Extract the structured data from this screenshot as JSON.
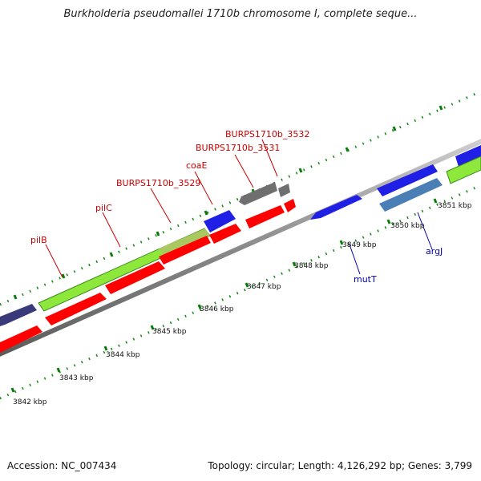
{
  "title": "Burkholderia pseudomallei 1710b chromosome I, complete seque...",
  "accession": "Accession: NC_007434",
  "summary": "Topology: circular; Length: 4,126,292 bp; Genes: 3,799",
  "scale_labels": [
    {
      "id": "3842",
      "text": "3842 kbp"
    },
    {
      "id": "3843",
      "text": "3843 kbp"
    },
    {
      "id": "3844",
      "text": "3844 kbp"
    },
    {
      "id": "3845",
      "text": "3845 kbp"
    },
    {
      "id": "3846",
      "text": "3846 kbp"
    },
    {
      "id": "3847",
      "text": "3847 kbp"
    },
    {
      "id": "3848",
      "text": "3848 kbp"
    },
    {
      "id": "3849",
      "text": "3849 kbp"
    },
    {
      "id": "3850",
      "text": "3850 kbp"
    },
    {
      "id": "3851",
      "text": "3851 kbp"
    }
  ],
  "genes": [
    {
      "id": "pilB",
      "label": "pilB",
      "color": "#cc0000"
    },
    {
      "id": "pilC",
      "label": "pilC",
      "color": "#cc0000"
    },
    {
      "id": "BURPS1710b_3529",
      "label": "BURPS1710b_3529",
      "color": "#cc0000"
    },
    {
      "id": "coaE",
      "label": "coaE",
      "color": "#cc0000"
    },
    {
      "id": "BURPS1710b_3531",
      "label": "BURPS1710b_3531",
      "color": "#cc0000"
    },
    {
      "id": "BURPS1710b_3532",
      "label": "BURPS1710b_3532",
      "color": "#cc0000"
    },
    {
      "id": "mutT",
      "label": "mutT",
      "color": "#0000aa"
    },
    {
      "id": "argJ",
      "label": "argJ",
      "color": "#0000aa"
    }
  ],
  "colors": {
    "backbone": "#8c8c8c",
    "tick": "#118811",
    "forward_cds": "#ff0000",
    "reverse_cds": "#1f1fe6",
    "gray_feature": "#6f6f6f",
    "green_feature": "#8ee83c",
    "steel_feature": "#4a7fb5",
    "navy_feature": "#3a3a7a"
  }
}
